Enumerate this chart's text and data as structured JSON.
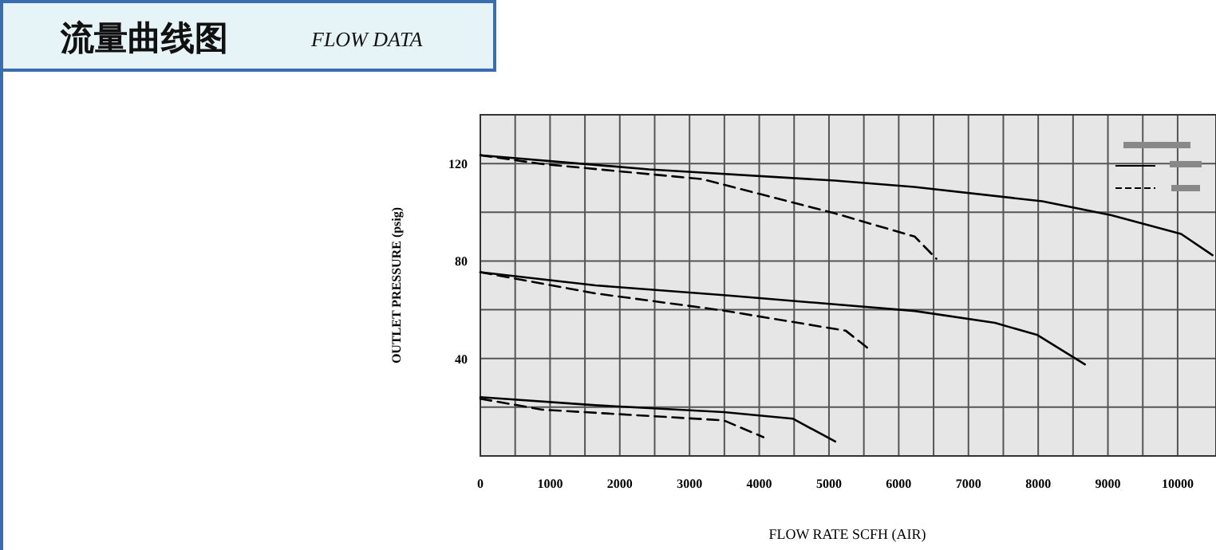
{
  "chart_data": {
    "type": "line",
    "title": "流量曲线图",
    "subtitle": "FLOW DATA",
    "xlabel": "FLOW RATE  SCFH  (AIR)",
    "ylabel": "OUTLET  PRESSURE  (psig)",
    "xlim": [
      0,
      10550
    ],
    "ylim": [
      0,
      140
    ],
    "xticks": [
      0,
      {
        "value": 500,
        "label": null
      },
      1000,
      {
        "value": 1500,
        "label": null
      },
      2000,
      {
        "value": 2500,
        "label": null
      },
      3000,
      {
        "value": 3500,
        "label": null
      },
      4000,
      {
        "value": 4500,
        "label": null
      },
      5000,
      {
        "value": 5500,
        "label": null
      },
      6000,
      {
        "value": 6500,
        "label": null
      },
      7000,
      {
        "value": 7500,
        "label": null
      },
      8000,
      {
        "value": 8500,
        "label": null
      },
      9000,
      {
        "value": 9500,
        "label": null
      },
      10000
    ],
    "yticks": [
      {
        "value": 0,
        "label": null
      },
      {
        "value": 20,
        "label": null
      },
      40,
      {
        "value": 60,
        "label": null
      },
      80,
      {
        "value": 100,
        "label": null
      },
      120
    ],
    "grid": true,
    "marker": "none",
    "series": [
      {
        "color": "#000000",
        "line_style": "solid",
        "x": [
          0,
          2420,
          5080,
          6220,
          8060,
          9050,
          10050,
          10500
        ],
        "values": [
          123.4,
          117.6,
          113,
          110.4,
          104.5,
          98.8,
          91.1,
          82.4
        ]
      },
      {
        "color": "#000000",
        "line_style": "dashed",
        "x": [
          0,
          890,
          3180,
          5090,
          6230,
          6540
        ],
        "values": [
          123.4,
          119.8,
          113.6,
          99.5,
          90,
          80.9
        ]
      },
      {
        "color": "#000000",
        "line_style": "solid",
        "x": [
          0,
          1650,
          3490,
          6230,
          7380,
          7990,
          8670
        ],
        "values": [
          75.4,
          70,
          66,
          59.5,
          54.6,
          49.6,
          37.6
        ]
      },
      {
        "color": "#000000",
        "line_style": "dashed",
        "x": [
          0,
          1650,
          3480,
          5240,
          5580
        ],
        "values": [
          75.4,
          66.7,
          59.7,
          51.4,
          43.7
        ]
      },
      {
        "color": "#000000",
        "line_style": "solid",
        "x": [
          0,
          1650,
          3490,
          4480,
          5090
        ],
        "values": [
          24.1,
          20.8,
          18,
          15.3,
          5.9
        ]
      },
      {
        "color": "#000000",
        "line_style": "dashed",
        "x": [
          0,
          890,
          3490,
          4060
        ],
        "values": [
          23.5,
          19,
          14.6,
          7.7
        ]
      }
    ]
  }
}
